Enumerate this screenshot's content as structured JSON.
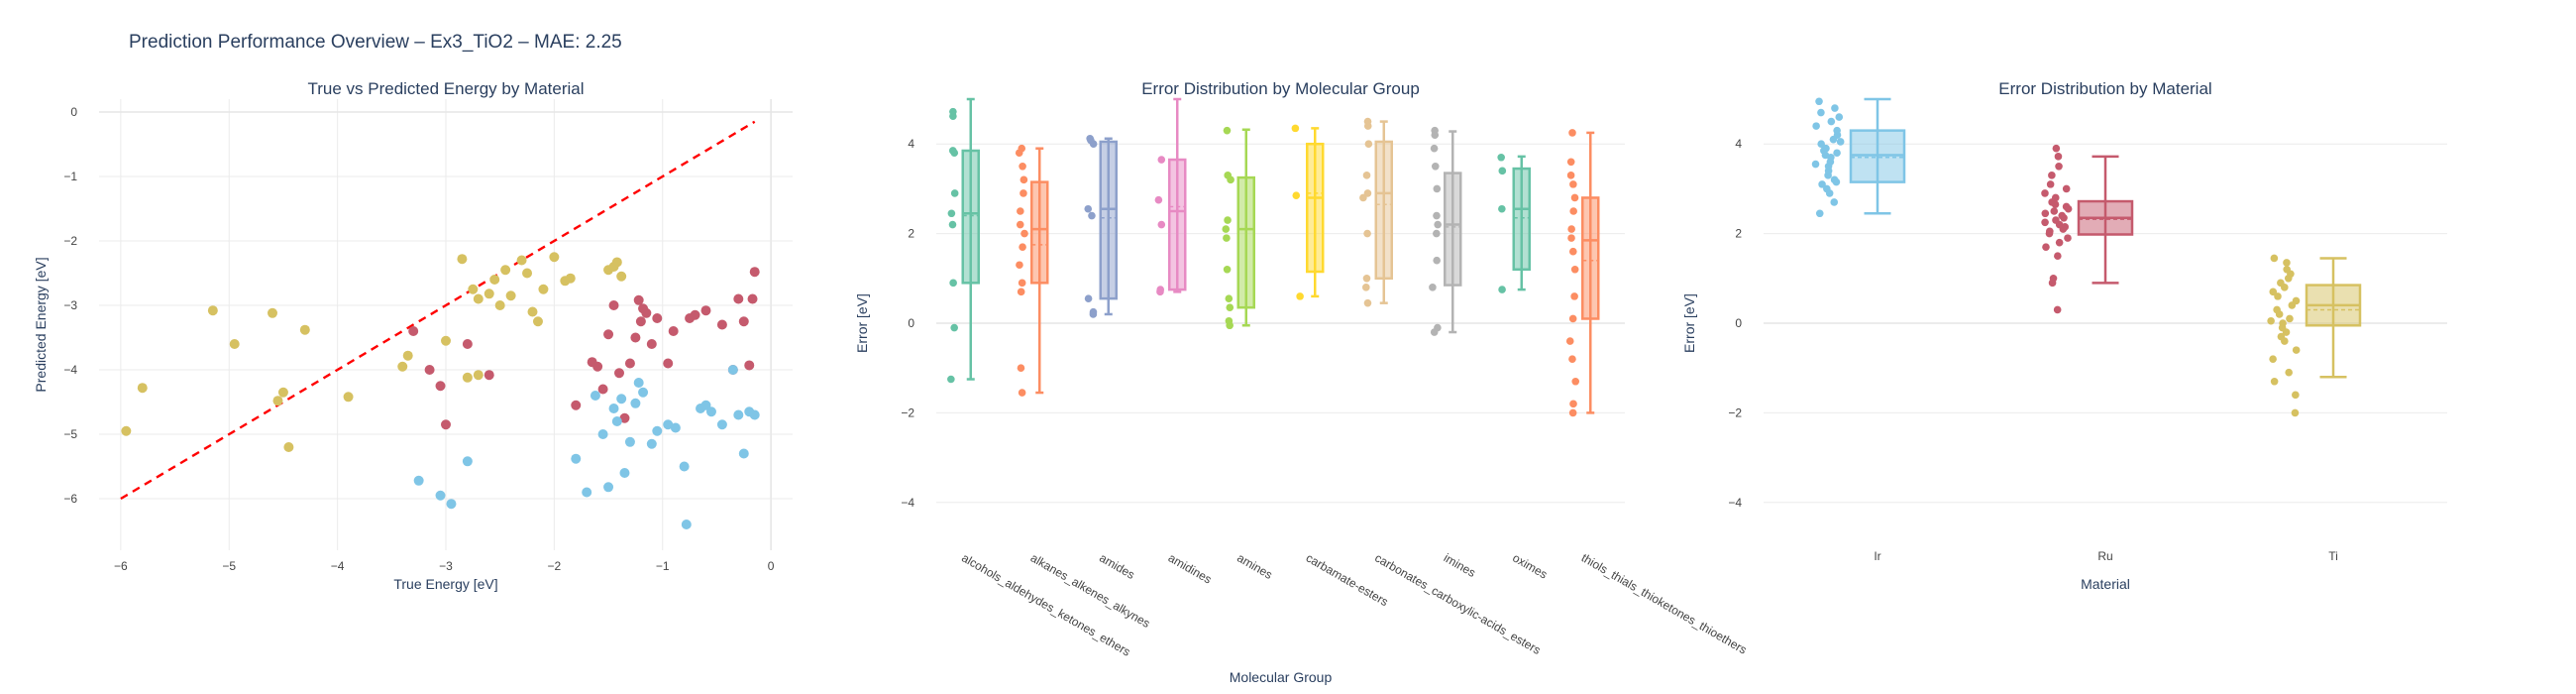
{
  "page_title": "Prediction Performance Overview – Ex3_TiO2 – MAE: 2.25",
  "chart_data": [
    {
      "type": "scatter",
      "title": "True vs Predicted Energy by Material",
      "xlabel": "True Energy [eV]",
      "ylabel": "Predicted Energy [eV]",
      "xlim": [
        -6.2,
        0.2
      ],
      "ylim": [
        -6.8,
        0.2
      ],
      "xticks": [
        -6,
        -5,
        -4,
        -3,
        -2,
        -1,
        0
      ],
      "yticks": [
        -6,
        -5,
        -4,
        -3,
        -2,
        -1,
        0
      ],
      "grid": true,
      "legend": "none",
      "reference_line": {
        "from": [
          -6.0,
          -6.0
        ],
        "to": [
          -0.15,
          -0.15
        ],
        "color": "#ff0000",
        "style": "dashed"
      },
      "series": [
        {
          "color": "#d6c161",
          "points": [
            [
              -5.95,
              -4.95
            ],
            [
              -5.8,
              -4.28
            ],
            [
              -5.15,
              -3.08
            ],
            [
              -4.95,
              -3.6
            ],
            [
              -4.6,
              -3.12
            ],
            [
              -4.55,
              -4.48
            ],
            [
              -4.5,
              -4.35
            ],
            [
              -4.45,
              -5.2
            ],
            [
              -4.3,
              -3.38
            ],
            [
              -3.9,
              -4.42
            ],
            [
              -3.4,
              -3.95
            ],
            [
              -3.35,
              -3.78
            ],
            [
              -3.0,
              -3.55
            ],
            [
              -2.85,
              -2.28
            ],
            [
              -2.8,
              -4.12
            ],
            [
              -2.75,
              -2.75
            ],
            [
              -2.7,
              -2.9
            ],
            [
              -2.7,
              -4.08
            ],
            [
              -2.6,
              -2.82
            ],
            [
              -2.55,
              -2.6
            ],
            [
              -2.5,
              -3.0
            ],
            [
              -2.45,
              -2.45
            ],
            [
              -2.4,
              -2.85
            ],
            [
              -2.3,
              -2.3
            ],
            [
              -2.25,
              -2.5
            ],
            [
              -2.2,
              -3.1
            ],
            [
              -2.15,
              -3.25
            ],
            [
              -2.1,
              -2.75
            ],
            [
              -2.0,
              -2.25
            ],
            [
              -1.9,
              -2.62
            ],
            [
              -1.85,
              -2.58
            ],
            [
              -1.5,
              -2.45
            ],
            [
              -1.45,
              -2.4
            ],
            [
              -1.42,
              -2.33
            ],
            [
              -1.38,
              -2.55
            ]
          ]
        },
        {
          "color": "#c55a6d",
          "points": [
            [
              -3.3,
              -3.4
            ],
            [
              -3.15,
              -4.0
            ],
            [
              -3.05,
              -4.25
            ],
            [
              -3.0,
              -4.85
            ],
            [
              -2.8,
              -3.6
            ],
            [
              -2.6,
              -4.08
            ],
            [
              -1.8,
              -4.55
            ],
            [
              -1.65,
              -3.88
            ],
            [
              -1.6,
              -3.95
            ],
            [
              -1.55,
              -4.3
            ],
            [
              -1.5,
              -3.45
            ],
            [
              -1.45,
              -3.0
            ],
            [
              -1.4,
              -4.05
            ],
            [
              -1.35,
              -4.75
            ],
            [
              -1.3,
              -3.9
            ],
            [
              -1.25,
              -3.5
            ],
            [
              -1.22,
              -2.92
            ],
            [
              -1.2,
              -3.25
            ],
            [
              -1.18,
              -3.05
            ],
            [
              -1.15,
              -3.12
            ],
            [
              -1.1,
              -3.6
            ],
            [
              -1.05,
              -3.2
            ],
            [
              -0.95,
              -3.9
            ],
            [
              -0.9,
              -3.4
            ],
            [
              -0.75,
              -3.2
            ],
            [
              -0.7,
              -3.15
            ],
            [
              -0.6,
              -3.08
            ],
            [
              -0.45,
              -3.3
            ],
            [
              -0.35,
              -4.0
            ],
            [
              -0.3,
              -2.9
            ],
            [
              -0.25,
              -3.25
            ],
            [
              -0.2,
              -3.93
            ],
            [
              -0.17,
              -2.9
            ],
            [
              -0.15,
              -2.48
            ]
          ]
        },
        {
          "color": "#7fc5e6",
          "points": [
            [
              -3.25,
              -5.72
            ],
            [
              -3.05,
              -5.95
            ],
            [
              -2.95,
              -6.08
            ],
            [
              -2.8,
              -5.42
            ],
            [
              -1.8,
              -5.38
            ],
            [
              -1.7,
              -5.9
            ],
            [
              -1.62,
              -4.4
            ],
            [
              -1.55,
              -5.0
            ],
            [
              -1.5,
              -5.82
            ],
            [
              -1.45,
              -4.6
            ],
            [
              -1.42,
              -4.8
            ],
            [
              -1.38,
              -4.45
            ],
            [
              -1.35,
              -5.6
            ],
            [
              -1.3,
              -5.12
            ],
            [
              -1.25,
              -4.52
            ],
            [
              -1.22,
              -4.2
            ],
            [
              -1.18,
              -4.35
            ],
            [
              -1.1,
              -5.15
            ],
            [
              -1.05,
              -4.95
            ],
            [
              -0.95,
              -4.85
            ],
            [
              -0.88,
              -4.9
            ],
            [
              -0.8,
              -5.5
            ],
            [
              -0.78,
              -6.4
            ],
            [
              -0.65,
              -4.6
            ],
            [
              -0.6,
              -4.55
            ],
            [
              -0.55,
              -4.65
            ],
            [
              -0.45,
              -4.85
            ],
            [
              -0.35,
              -4.0
            ],
            [
              -0.3,
              -4.7
            ],
            [
              -0.25,
              -5.3
            ],
            [
              -0.2,
              -4.65
            ],
            [
              -0.15,
              -4.7
            ]
          ]
        }
      ]
    },
    {
      "type": "box",
      "title": "Error Distribution by Molecular Group",
      "xlabel": "Molecular Group",
      "ylabel": "Error [eV]",
      "ylim": [
        -5,
        5
      ],
      "yticks": [
        -4,
        -2,
        0,
        2,
        4
      ],
      "grid": true,
      "legend": "none",
      "boxmean": true,
      "categories": [
        "alcohols_aldehydes_ketones_ethers",
        "alkanes_alkenes_alkynes",
        "amides",
        "amidines",
        "amines",
        "carbamate-esters",
        "carbonates_carboxylic-acids_esters",
        "imines",
        "oximes",
        "thiols_thials_thioketones_thioethers"
      ],
      "boxes": [
        {
          "color": "#66c2a5",
          "min": -1.25,
          "q1": 0.9,
          "median": 2.45,
          "mean": 2.4,
          "q3": 3.85,
          "max": 5.0,
          "points": [
            -1.25,
            -0.1,
            0.9,
            2.2,
            2.45,
            2.9,
            3.8,
            3.85,
            4.62,
            4.72
          ]
        },
        {
          "color": "#fc8d62",
          "min": -1.55,
          "q1": 0.9,
          "median": 2.1,
          "mean": 1.75,
          "q3": 3.15,
          "max": 3.9,
          "points": [
            -1.55,
            -1.0,
            0.7,
            0.9,
            1.3,
            1.7,
            2.0,
            2.2,
            2.5,
            2.9,
            3.2,
            3.5,
            3.8,
            3.9
          ]
        },
        {
          "color": "#8da0cb",
          "min": 0.2,
          "q1": 0.55,
          "median": 2.55,
          "mean": 2.35,
          "q3": 4.05,
          "max": 4.12,
          "points": [
            0.2,
            0.25,
            0.55,
            2.4,
            2.55,
            4.0,
            4.08,
            4.12
          ]
        },
        {
          "color": "#e78ac3",
          "min": 0.7,
          "q1": 0.75,
          "median": 2.5,
          "mean": 2.6,
          "q3": 3.65,
          "max": 5.0,
          "points": [
            0.7,
            0.75,
            2.2,
            2.75,
            3.65
          ]
        },
        {
          "color": "#a6d854",
          "min": -0.05,
          "q1": 0.35,
          "median": 2.1,
          "mean": 2.1,
          "q3": 3.25,
          "max": 4.32,
          "points": [
            -0.05,
            0.05,
            0.35,
            0.55,
            1.2,
            1.9,
            2.1,
            2.3,
            3.2,
            3.3,
            4.3
          ]
        },
        {
          "color": "#ffd92f",
          "min": 0.6,
          "q1": 1.15,
          "median": 2.8,
          "mean": 2.9,
          "q3": 4.0,
          "max": 4.35,
          "points": [
            0.6,
            2.85,
            4.35
          ]
        },
        {
          "color": "#e5c494",
          "min": 0.45,
          "q1": 1.0,
          "median": 2.9,
          "mean": 2.65,
          "q3": 4.05,
          "max": 4.5,
          "points": [
            0.45,
            0.8,
            1.0,
            2.0,
            2.8,
            2.9,
            3.3,
            4.0,
            4.4,
            4.5
          ]
        },
        {
          "color": "#b3b3b3",
          "min": -0.2,
          "q1": 0.85,
          "median": 2.2,
          "mean": 2.15,
          "q3": 3.35,
          "max": 4.28,
          "points": [
            -0.2,
            -0.1,
            0.8,
            1.4,
            2.0,
            2.2,
            2.4,
            3.0,
            3.5,
            3.9,
            4.2,
            4.3
          ]
        },
        {
          "color": "#66c2a5",
          "min": 0.75,
          "q1": 1.2,
          "median": 2.55,
          "mean": 2.35,
          "q3": 3.45,
          "max": 3.72,
          "points": [
            0.75,
            2.55,
            3.4,
            3.7
          ]
        },
        {
          "color": "#fc8d62",
          "min": -2.0,
          "q1": 0.1,
          "median": 1.85,
          "mean": 1.4,
          "q3": 2.8,
          "max": 4.25,
          "points": [
            -2.0,
            -1.8,
            -1.3,
            -0.8,
            -0.4,
            0.1,
            0.6,
            1.2,
            1.6,
            1.9,
            2.1,
            2.5,
            2.8,
            3.1,
            3.3,
            3.6,
            4.25
          ]
        }
      ]
    },
    {
      "type": "box",
      "title": "Error Distribution by Material",
      "xlabel": "Material",
      "ylabel": "Error [eV]",
      "ylim": [
        -5,
        5
      ],
      "yticks": [
        -4,
        -2,
        0,
        2,
        4
      ],
      "grid": true,
      "legend": "none",
      "boxmean": true,
      "categories": [
        "Ir",
        "Ru",
        "Ti"
      ],
      "boxes": [
        {
          "color": "#7fc5e6",
          "min": 2.45,
          "q1": 3.15,
          "median": 3.75,
          "mean": 3.7,
          "q3": 4.3,
          "max": 5.0,
          "points": [
            2.45,
            2.7,
            2.9,
            3.0,
            3.1,
            3.15,
            3.2,
            3.3,
            3.4,
            3.5,
            3.55,
            3.6,
            3.7,
            3.75,
            3.8,
            3.85,
            3.9,
            4.0,
            4.05,
            4.1,
            4.2,
            4.3,
            4.4,
            4.5,
            4.6,
            4.7,
            4.8,
            4.95
          ]
        },
        {
          "color": "#c55a6d",
          "min": 0.9,
          "q1": 1.98,
          "median": 2.35,
          "mean": 2.32,
          "q3": 2.72,
          "max": 3.72,
          "points": [
            0.3,
            0.9,
            1.0,
            1.5,
            1.7,
            1.8,
            1.9,
            2.0,
            2.05,
            2.1,
            2.15,
            2.2,
            2.25,
            2.3,
            2.35,
            2.4,
            2.45,
            2.5,
            2.55,
            2.6,
            2.65,
            2.7,
            2.8,
            2.9,
            3.0,
            3.1,
            3.3,
            3.5,
            3.72,
            3.9
          ]
        },
        {
          "color": "#d6c161",
          "min": -1.2,
          "q1": -0.05,
          "median": 0.4,
          "mean": 0.3,
          "q3": 0.85,
          "max": 1.45,
          "points": [
            -2.0,
            -1.6,
            -1.3,
            -1.1,
            -0.8,
            -0.6,
            -0.4,
            -0.3,
            -0.2,
            -0.1,
            0.0,
            0.05,
            0.1,
            0.2,
            0.3,
            0.4,
            0.5,
            0.6,
            0.7,
            0.8,
            0.9,
            1.0,
            1.1,
            1.2,
            1.35,
            1.45
          ]
        }
      ]
    }
  ]
}
